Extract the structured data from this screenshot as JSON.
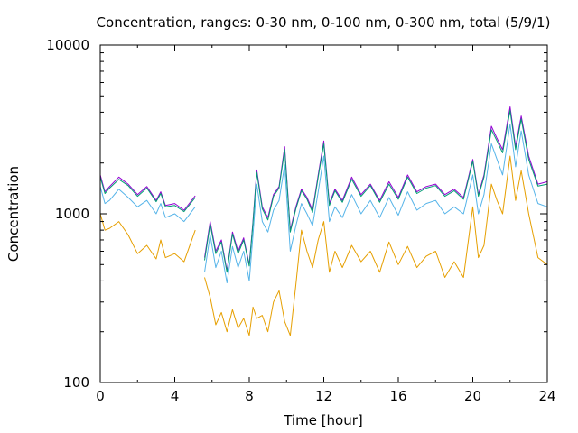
{
  "chart_data": {
    "type": "line",
    "title": "Concentration, ranges: 0-30 nm, 0-100 nm, 0-300 nm, total (5/9/1)",
    "xlabel": "Time [hour]",
    "ylabel": "Concentration",
    "xlim": [
      0,
      24
    ],
    "ylim": [
      100,
      10000
    ],
    "yscale": "log",
    "grid": false,
    "legend": "none",
    "x_ticks": [
      0,
      4,
      8,
      12,
      16,
      20,
      24
    ],
    "x_tick_labels": [
      "0",
      "4",
      "8",
      "12",
      "16",
      "20",
      "24"
    ],
    "y_ticks": [
      100,
      1000,
      10000
    ],
    "y_tick_labels": [
      "100",
      "1000",
      "10000"
    ],
    "x": [
      0,
      0.25,
      0.5,
      1,
      1.5,
      2,
      2.5,
      3,
      3.25,
      3.5,
      4,
      4.5,
      5.1,
      5.3,
      5.6,
      5.9,
      6.2,
      6.5,
      6.8,
      7.1,
      7.4,
      7.7,
      8,
      8.2,
      8.4,
      8.7,
      9,
      9.3,
      9.6,
      9.9,
      10.2,
      10.5,
      10.8,
      11.1,
      11.4,
      11.7,
      12,
      12.3,
      12.6,
      13,
      13.5,
      14,
      14.5,
      15,
      15.5,
      16,
      16.5,
      17,
      17.5,
      18,
      18.5,
      19,
      19.5,
      20,
      20.3,
      20.6,
      21,
      21.3,
      21.6,
      22,
      22.3,
      22.6,
      23,
      23.5,
      24
    ],
    "series": [
      {
        "color": "#9400d3",
        "values": [
          1700,
          1350,
          1450,
          1650,
          1500,
          1300,
          1450,
          1200,
          1350,
          1120,
          1150,
          1050,
          1280,
          null,
          550,
          900,
          600,
          700,
          460,
          780,
          600,
          720,
          500,
          900,
          1820,
          1100,
          950,
          1300,
          1450,
          2500,
          800,
          1100,
          1400,
          1250,
          1050,
          1700,
          2700,
          1150,
          1400,
          1200,
          1650,
          1300,
          1500,
          1200,
          1550,
          1250,
          1700,
          1350,
          1450,
          1500,
          1300,
          1400,
          1250,
          2100,
          1300,
          1700,
          3300,
          2800,
          2400,
          4300,
          2500,
          3800,
          2200,
          1500,
          1550
        ]
      },
      {
        "color": "#009e73",
        "values": [
          1650,
          1320,
          1420,
          1600,
          1470,
          1270,
          1420,
          1180,
          1320,
          1100,
          1120,
          1030,
          1250,
          null,
          530,
          870,
          580,
          680,
          450,
          760,
          580,
          700,
          490,
          880,
          1760,
          1070,
          920,
          1270,
          1420,
          2400,
          780,
          1070,
          1370,
          1220,
          1020,
          1650,
          2600,
          1120,
          1370,
          1170,
          1600,
          1270,
          1470,
          1170,
          1500,
          1220,
          1650,
          1320,
          1420,
          1470,
          1270,
          1370,
          1220,
          2050,
          1270,
          1650,
          3150,
          2700,
          2300,
          4100,
          2400,
          3650,
          2100,
          1460,
          1500
        ]
      },
      {
        "color": "#56b4e9",
        "values": [
          1450,
          1150,
          1200,
          1400,
          1250,
          1100,
          1200,
          1000,
          1150,
          950,
          1000,
          900,
          1100,
          null,
          450,
          750,
          480,
          600,
          390,
          640,
          480,
          600,
          400,
          750,
          1500,
          900,
          780,
          1050,
          1200,
          1950,
          600,
          850,
          1150,
          1000,
          850,
          1350,
          2200,
          900,
          1100,
          950,
          1300,
          1000,
          1200,
          950,
          1250,
          980,
          1350,
          1050,
          1150,
          1200,
          1000,
          1100,
          1000,
          1700,
          1000,
          1300,
          2600,
          2100,
          1700,
          3400,
          1900,
          3100,
          1700,
          1150,
          1100
        ]
      },
      {
        "color": "#e69f00",
        "values": [
          1000,
          800,
          820,
          900,
          750,
          580,
          650,
          540,
          700,
          550,
          580,
          520,
          800,
          null,
          420,
          320,
          220,
          260,
          200,
          270,
          210,
          240,
          190,
          280,
          240,
          250,
          200,
          300,
          350,
          230,
          190,
          380,
          800,
          600,
          480,
          700,
          900,
          450,
          600,
          480,
          650,
          520,
          600,
          450,
          680,
          500,
          640,
          480,
          560,
          600,
          420,
          520,
          420,
          1100,
          550,
          650,
          1500,
          1200,
          1000,
          2200,
          1200,
          1800,
          1000,
          550,
          500
        ]
      }
    ]
  }
}
